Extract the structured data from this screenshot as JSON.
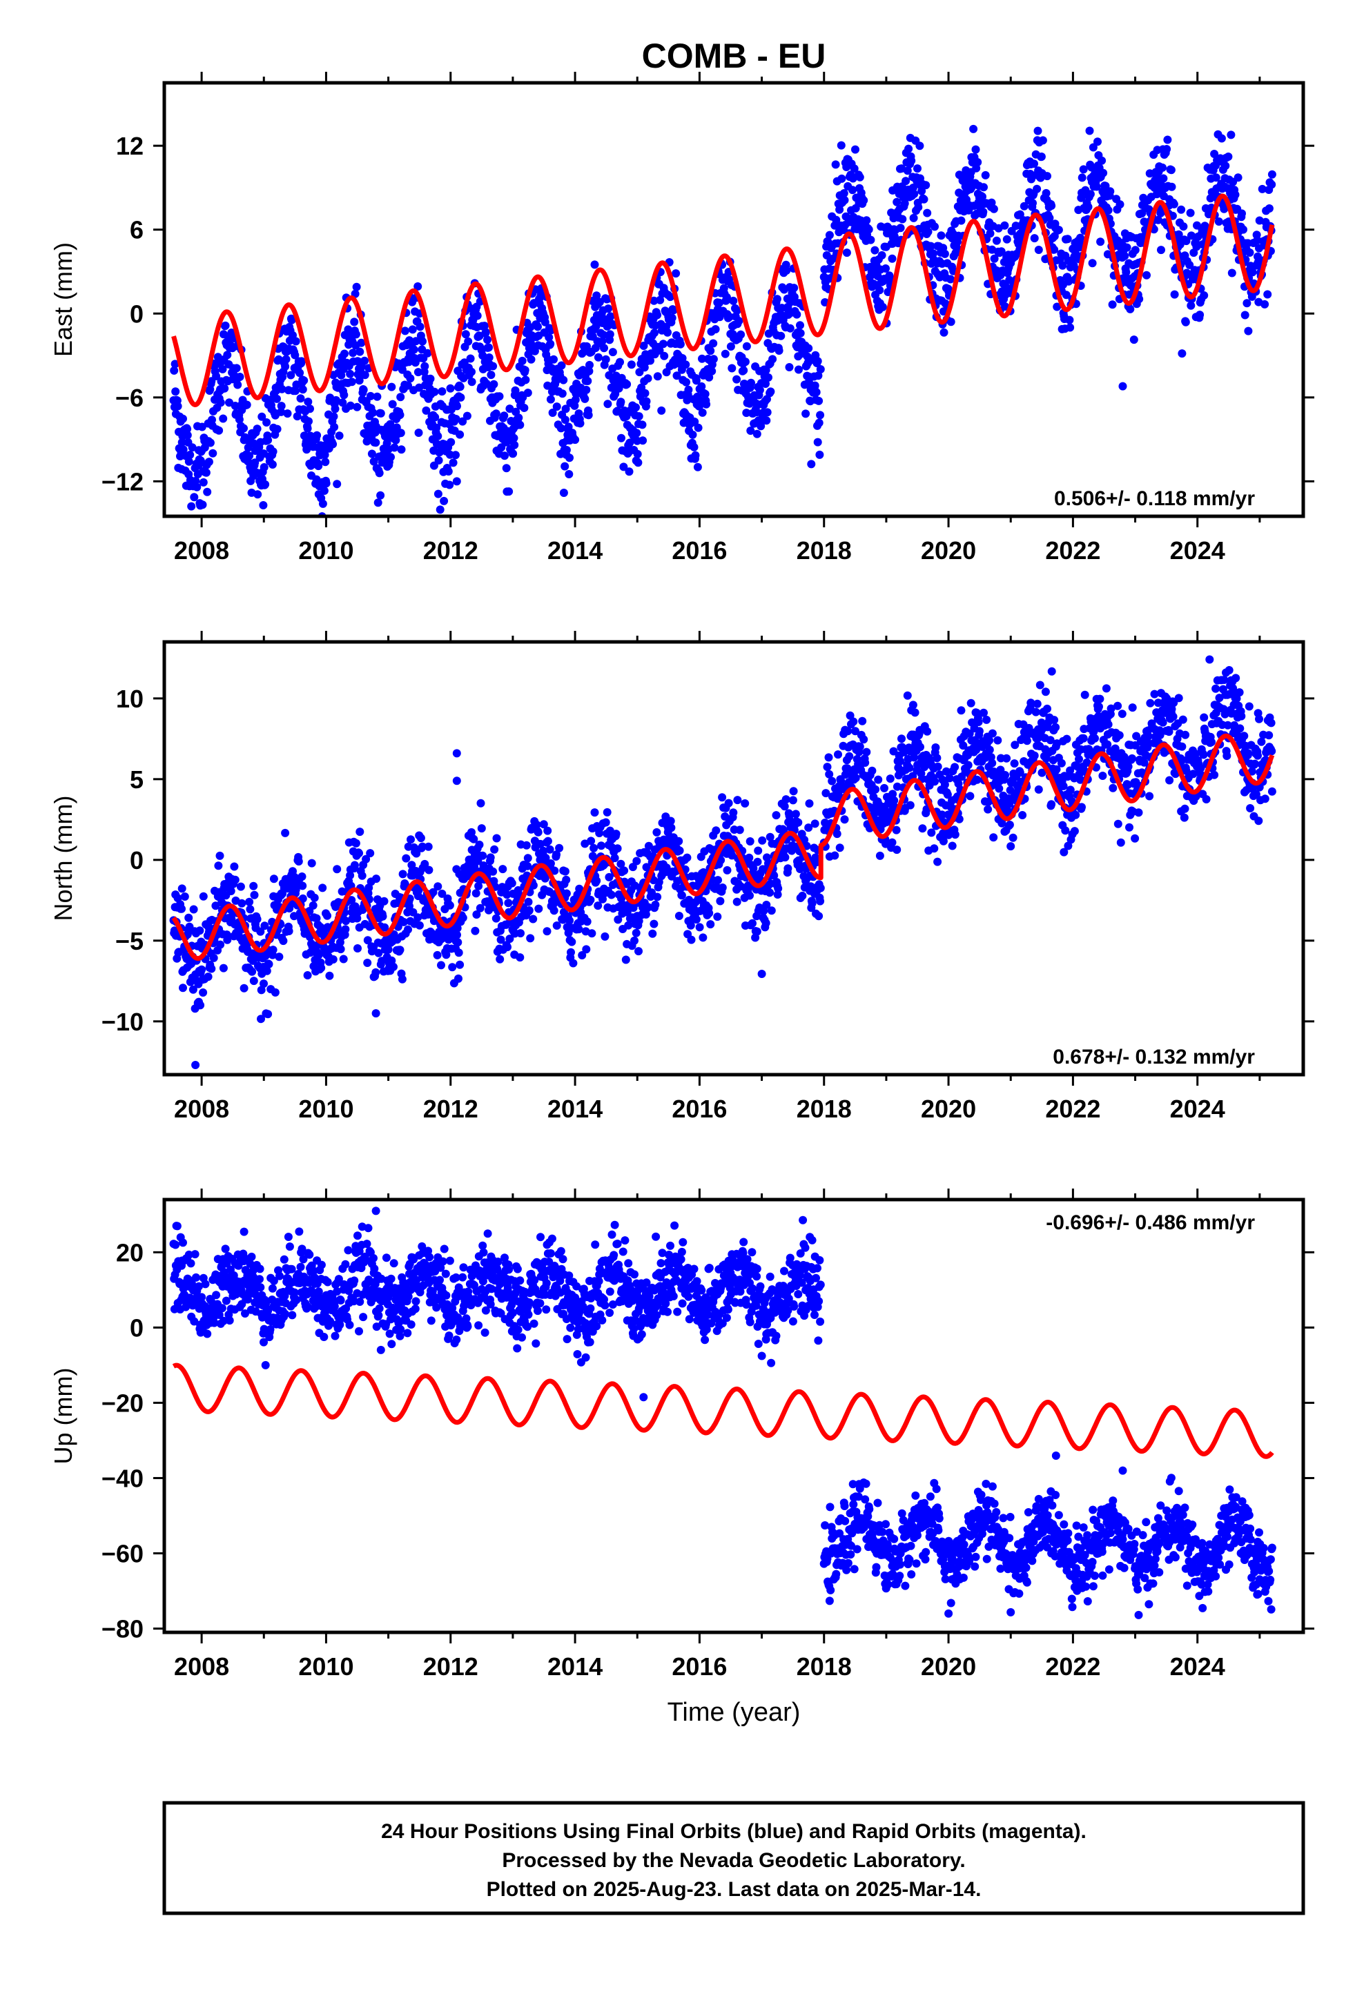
{
  "chart_data": [
    {
      "type": "scatter",
      "title": "COMB - EU",
      "ylabel": "East (mm)",
      "xlabel": "",
      "xlim": [
        2007.4,
        2025.7
      ],
      "ylim": [
        -14.5,
        16.5
      ],
      "x_ticks": [
        2008,
        2010,
        2012,
        2014,
        2016,
        2018,
        2020,
        2022,
        2024
      ],
      "x_tick_labels": [
        "2008",
        "2010",
        "2012",
        "2014",
        "2016",
        "2018",
        "2020",
        "2022",
        "2024"
      ],
      "y_ticks": [
        -12,
        -6,
        0,
        6,
        12
      ],
      "y_tick_labels": [
        "−12",
        "−6",
        "0",
        "6",
        "12"
      ],
      "rate_label": "0.506+/- 0.118 mm/yr",
      "rate_position": "bottom-right",
      "colors": {
        "points": "#0000ff",
        "fit": "#ff0000"
      },
      "series": [
        {
          "kind": "observations",
          "segments": [
            {
              "x_range": [
                2007.55,
                2017.95
              ],
              "base_at_start": -8.0,
              "slope": 0.55,
              "annual_amplitude": 4.0,
              "peak_phase": 0.4,
              "noise": 1.8
            },
            {
              "x_range": [
                2018.0,
                2025.2
              ],
              "base_at_start": 5.5,
              "slope": 0.1,
              "annual_amplitude": 3.6,
              "peak_phase": 0.4,
              "noise": 1.8
            }
          ],
          "outliers": [
            [
              2012.1,
              -12.0
            ],
            [
              2019.1,
              5.0
            ],
            [
              2022.8,
              -5.2
            ],
            [
              2017.9,
              -9.2
            ]
          ]
        },
        {
          "kind": "model",
          "segments": [
            {
              "x_range": [
                2007.55,
                2017.95
              ],
              "base_at_start": -3.5,
              "slope": 0.5,
              "annual_amplitude": 3.2,
              "peak_phase": 0.4
            },
            {
              "x_range": [
                2017.95,
                2025.2
              ],
              "base_at_start": 2.0,
              "slope": 0.45,
              "annual_amplitude": 3.5,
              "peak_phase": 0.4
            }
          ]
        }
      ]
    },
    {
      "type": "scatter",
      "title": "",
      "ylabel": "North (mm)",
      "xlabel": "",
      "xlim": [
        2007.4,
        2025.7
      ],
      "ylim": [
        -13.3,
        13.5
      ],
      "x_ticks": [
        2008,
        2010,
        2012,
        2014,
        2016,
        2018,
        2020,
        2022,
        2024
      ],
      "x_tick_labels": [
        "2008",
        "2010",
        "2012",
        "2014",
        "2016",
        "2018",
        "2020",
        "2022",
        "2024"
      ],
      "y_ticks": [
        -10,
        -5,
        0,
        5,
        10
      ],
      "y_tick_labels": [
        "−10",
        "−5",
        "0",
        "5",
        "10"
      ],
      "rate_label": "0.678+/- 0.132 mm/yr",
      "rate_position": "bottom-right",
      "colors": {
        "points": "#0000ff",
        "fit": "#ff0000"
      },
      "series": [
        {
          "kind": "observations",
          "segments": [
            {
              "x_range": [
                2007.55,
                2017.95
              ],
              "base_at_start": -5.0,
              "slope": 0.5,
              "annual_amplitude": 1.8,
              "peak_phase": 0.45,
              "noise": 1.5
            },
            {
              "x_range": [
                2018.0,
                2025.2
              ],
              "base_at_start": 4.0,
              "slope": 0.5,
              "annual_amplitude": 2.0,
              "peak_phase": 0.45,
              "noise": 1.5
            }
          ],
          "outliers": [
            [
              2007.9,
              -12.7
            ],
            [
              2012.1,
              6.6
            ],
            [
              2012.1,
              4.9
            ],
            [
              2010.8,
              -9.5
            ]
          ]
        },
        {
          "kind": "model",
          "segments": [
            {
              "x_range": [
                2007.55,
                2017.95
              ],
              "base_at_start": -4.8,
              "slope": 0.5,
              "annual_amplitude": 1.5,
              "peak_phase": 0.45
            },
            {
              "x_range": [
                2017.95,
                2025.2
              ],
              "base_at_start": 2.5,
              "slope": 0.55,
              "annual_amplitude": 1.6,
              "peak_phase": 0.45
            }
          ]
        }
      ]
    },
    {
      "type": "scatter",
      "title": "",
      "ylabel": "Up (mm)",
      "xlabel": "Time (year)",
      "xlim": [
        2007.4,
        2025.7
      ],
      "ylim": [
        -81,
        34
      ],
      "x_ticks": [
        2008,
        2010,
        2012,
        2014,
        2016,
        2018,
        2020,
        2022,
        2024
      ],
      "x_tick_labels": [
        "2008",
        "2010",
        "2012",
        "2014",
        "2016",
        "2018",
        "2020",
        "2022",
        "2024"
      ],
      "y_ticks": [
        -80,
        -60,
        -40,
        -20,
        0,
        20
      ],
      "y_tick_labels": [
        "−80",
        "−60",
        "−40",
        "−20",
        "0",
        "20"
      ],
      "rate_label": "-0.696+/- 0.486 mm/yr",
      "rate_position": "top-right",
      "colors": {
        "points": "#0000ff",
        "fit": "#ff0000"
      },
      "series": [
        {
          "kind": "observations",
          "segments": [
            {
              "x_range": [
                2007.55,
                2017.95
              ],
              "base_at_start": 10.0,
              "slope": -0.1,
              "annual_amplitude": 5.0,
              "peak_phase": 0.6,
              "noise": 5.0
            },
            {
              "x_range": [
                2018.0,
                2025.2
              ],
              "base_at_start": -56.0,
              "slope": -0.4,
              "annual_amplitude": 6.0,
              "peak_phase": 0.6,
              "noise": 4.5
            }
          ],
          "outliers": [
            [
              2010.8,
              31.0
            ],
            [
              2015.1,
              -18.5
            ],
            [
              2020.0,
              -76.0
            ],
            [
              2022.8,
              -38.0
            ]
          ]
        },
        {
          "kind": "model",
          "segments": [
            {
              "x_range": [
                2007.55,
                2025.2
              ],
              "base_at_start": -16.0,
              "slope": -0.7,
              "annual_amplitude": 6.0,
              "peak_phase": 0.6
            }
          ]
        }
      ]
    }
  ],
  "footer": {
    "line1": "24 Hour Positions Using Final Orbits (blue) and Rapid Orbits (magenta).",
    "line2": "Processed by the Nevada Geodetic Laboratory.",
    "line3": "Plotted on 2025-Aug-23. Last data on 2025-Mar-14."
  }
}
